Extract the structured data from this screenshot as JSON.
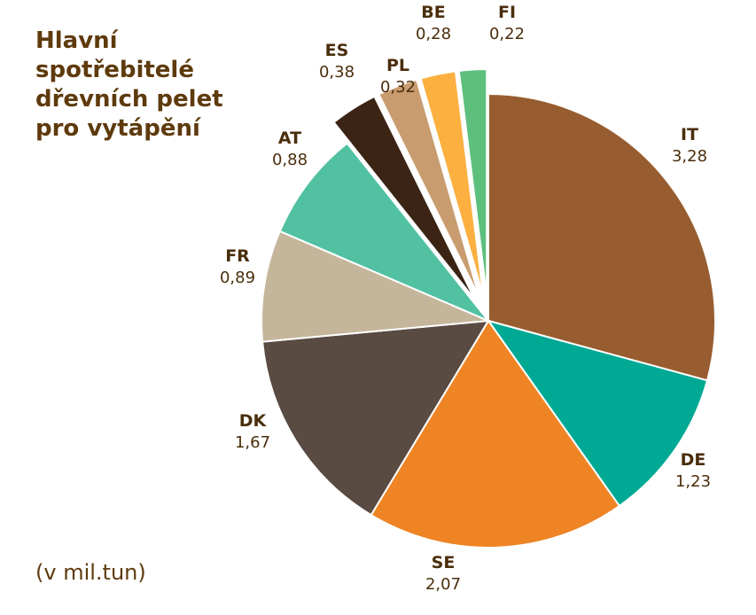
{
  "chart_data": {
    "type": "pie",
    "title": "Hlavní spotřebitelé dřevních pelet pro vytápění",
    "unit_note": "(v mil.tun)",
    "slices": [
      {
        "label": "IT",
        "value_text": "3,28",
        "value": 3.28,
        "color": "#975d30",
        "exploded": false
      },
      {
        "label": "DE",
        "value_text": "1,23",
        "value": 1.23,
        "color": "#00a994",
        "exploded": false
      },
      {
        "label": "SE",
        "value_text": "2,07",
        "value": 2.07,
        "color": "#ee8424",
        "exploded": false
      },
      {
        "label": "DK",
        "value_text": "1,67",
        "value": 1.67,
        "color": "#594a42",
        "exploded": false
      },
      {
        "label": "FR",
        "value_text": "0,89",
        "value": 0.89,
        "color": "#c5b69b",
        "exploded": false
      },
      {
        "label": "AT",
        "value_text": "0,88",
        "value": 0.88,
        "color": "#51c1a1",
        "exploded": false
      },
      {
        "label": "ES",
        "value_text": "0,38",
        "value": 0.38,
        "color": "#3b2414",
        "exploded": true
      },
      {
        "label": "PL",
        "value_text": "0,32",
        "value": 0.32,
        "color": "#c99c6f",
        "exploded": true
      },
      {
        "label": "BE",
        "value_text": "0,28",
        "value": 0.28,
        "color": "#fbb040",
        "exploded": true
      },
      {
        "label": "FI",
        "value_text": "0,22",
        "value": 0.22,
        "color": "#5dbf7c",
        "exploded": true
      }
    ]
  }
}
